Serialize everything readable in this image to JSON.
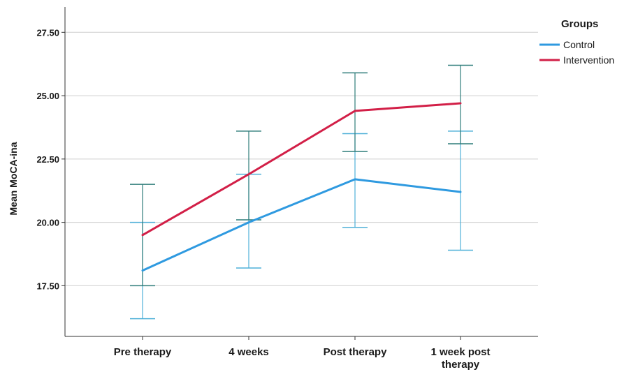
{
  "chart_data": {
    "type": "line",
    "title": "",
    "xlabel": "",
    "ylabel": "Mean MoCA-ina",
    "categories": [
      "Pre therapy",
      "4 weeks",
      "Post therapy",
      "1 week post therapy"
    ],
    "ylim": [
      15.5,
      28.5
    ],
    "yticks": [
      "17.50",
      "20.00",
      "22.50",
      "25.00",
      "27.50"
    ],
    "ytick_values": [
      17.5,
      20.0,
      22.5,
      25.0,
      27.5
    ],
    "grid": true,
    "legend": {
      "title": "Groups",
      "placement": "top-right"
    },
    "series": [
      {
        "name": "Control",
        "color": "#2f9ae0",
        "error_color": "#4fb0d8",
        "values": [
          18.1,
          20.0,
          21.7,
          21.2
        ],
        "lower": [
          16.2,
          18.2,
          19.8,
          18.9
        ],
        "upper": [
          20.0,
          21.9,
          23.5,
          23.6
        ]
      },
      {
        "name": "Intervention",
        "color": "#d21f47",
        "error_color": "#2f7d7a",
        "values": [
          19.5,
          21.9,
          24.4,
          24.7
        ],
        "lower": [
          17.5,
          20.1,
          22.8,
          23.1
        ],
        "upper": [
          21.5,
          23.6,
          25.9,
          26.2
        ]
      }
    ]
  }
}
